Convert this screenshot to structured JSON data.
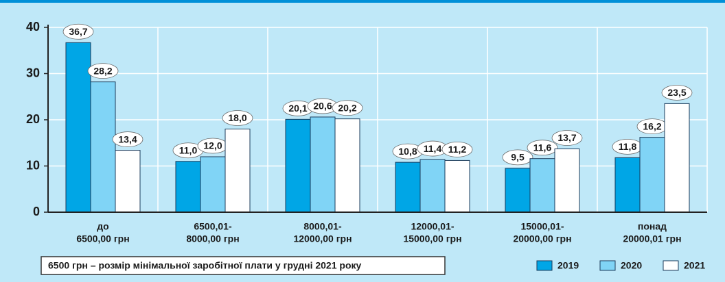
{
  "chart_data": {
    "type": "bar",
    "categories": [
      [
        "до",
        "6500,00 грн"
      ],
      [
        "6500,01-",
        "8000,00 грн"
      ],
      [
        "8000,01-",
        "12000,00 грн"
      ],
      [
        "12000,01-",
        "15000,00 грн"
      ],
      [
        "15000,01-",
        "20000,00 грн"
      ],
      [
        "понад",
        "20000,01 грн"
      ]
    ],
    "series": [
      {
        "name": "2019",
        "color": "#00a6e6",
        "values": [
          36.7,
          11.0,
          20.1,
          10.8,
          9.5,
          11.8
        ],
        "value_labels": [
          "36,7",
          "11,0",
          "20,1",
          "10,8",
          "9,5",
          "11,8"
        ]
      },
      {
        "name": "2020",
        "color": "#80d4f6",
        "values": [
          28.2,
          12.0,
          20.6,
          11.4,
          11.6,
          16.2
        ],
        "value_labels": [
          "28,2",
          "12,0",
          "20,6",
          "11,4",
          "11,6",
          "16,2"
        ]
      },
      {
        "name": "2021",
        "color": "#ffffff",
        "values": [
          13.4,
          18.0,
          20.2,
          11.2,
          13.7,
          23.5
        ],
        "value_labels": [
          "13,4",
          "18,0",
          "20,2",
          "11,2",
          "13,7",
          "23,5"
        ]
      }
    ],
    "ylim": [
      0,
      40
    ],
    "yticks": [
      0,
      10,
      20,
      30,
      40
    ],
    "grid": true,
    "note": "6500 грн – розмір мінімальної заробітної плати у грудні 2021 року",
    "legend": "bottom-right"
  }
}
